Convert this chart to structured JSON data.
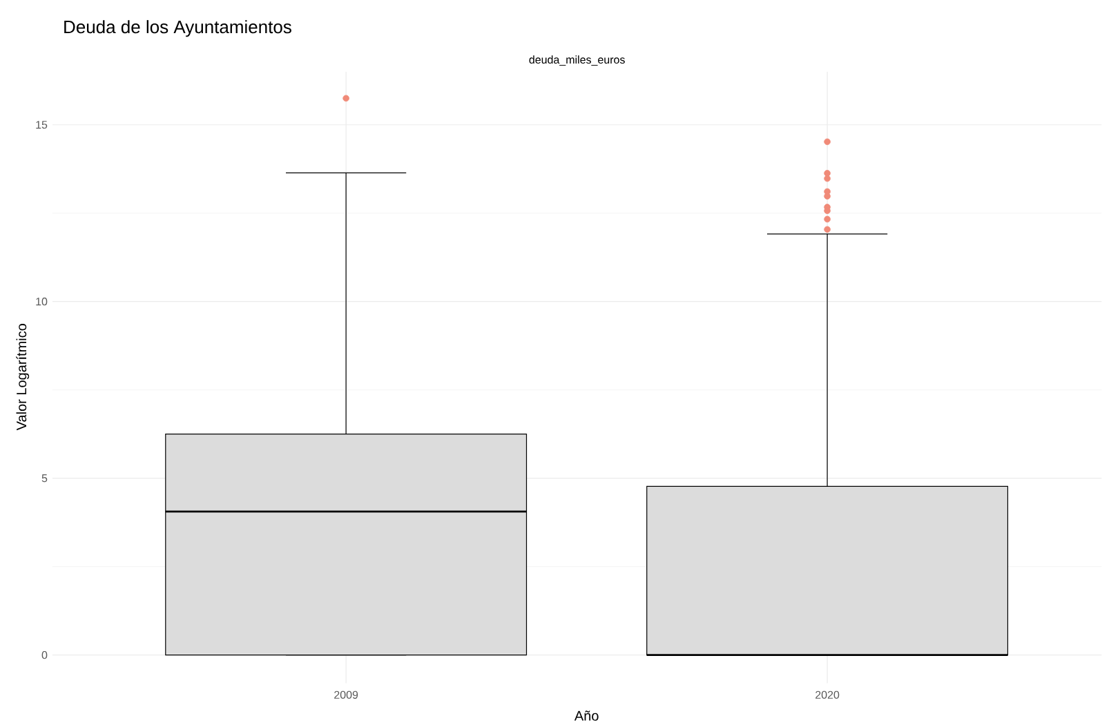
{
  "chart_data": {
    "type": "box",
    "title": "Deuda de los Ayuntamientos",
    "subtitle": "deuda_miles_euros",
    "xlabel": "Año",
    "ylabel": "Valor Logarítmico",
    "categories": [
      "2009",
      "2020"
    ],
    "boxes": [
      {
        "low": 0,
        "q1": 0,
        "median": 4.06,
        "q3": 6.25,
        "high": 13.64,
        "outliers": [
          15.75
        ]
      },
      {
        "low": 0,
        "q1": 0,
        "median": 0,
        "q3": 4.77,
        "high": 11.91,
        "outliers": [
          14.52,
          13.63,
          13.48,
          13.11,
          12.98,
          12.67,
          12.57,
          12.33,
          12.04
        ]
      }
    ],
    "color": "#dcdcdc",
    "ylim": [
      -0.8,
      16.5
    ],
    "yticks": [
      0,
      5,
      10,
      15
    ],
    "grid": true
  }
}
